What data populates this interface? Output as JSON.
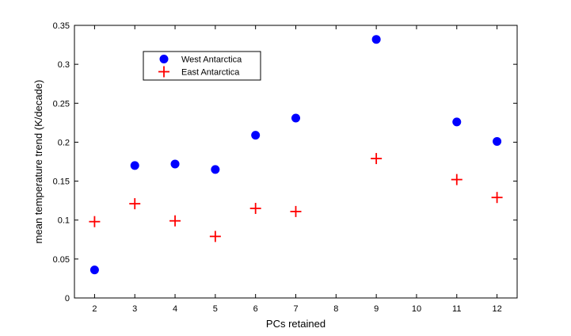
{
  "chart_data": {
    "type": "scatter",
    "xlabel": "PCs retained",
    "ylabel": "mean temperature trend (K/decade)",
    "xlim": [
      1.5,
      12.5
    ],
    "ylim": [
      0,
      0.35
    ],
    "xticks": [
      "2",
      "3",
      "4",
      "5",
      "6",
      "7",
      "8",
      "9",
      "10",
      "11",
      "12"
    ],
    "yticks": [
      "0",
      "0.05",
      "0.1",
      "0.15",
      "0.2",
      "0.25",
      "0.3",
      "0.35"
    ],
    "grid": false,
    "legend_position": "top-left",
    "series": [
      {
        "name": "West Antarctica",
        "marker": "circle",
        "color": "#0000ff",
        "points": [
          {
            "x": 2,
            "y": 0.036
          },
          {
            "x": 3,
            "y": 0.17
          },
          {
            "x": 4,
            "y": 0.172
          },
          {
            "x": 5,
            "y": 0.165
          },
          {
            "x": 6,
            "y": 0.209
          },
          {
            "x": 7,
            "y": 0.231
          },
          {
            "x": 9,
            "y": 0.332
          },
          {
            "x": 11,
            "y": 0.226
          },
          {
            "x": 12,
            "y": 0.201
          }
        ]
      },
      {
        "name": "East Antarctica",
        "marker": "plus",
        "color": "#ff0000",
        "points": [
          {
            "x": 2,
            "y": 0.098
          },
          {
            "x": 3,
            "y": 0.121
          },
          {
            "x": 4,
            "y": 0.099
          },
          {
            "x": 5,
            "y": 0.079
          },
          {
            "x": 6,
            "y": 0.115
          },
          {
            "x": 7,
            "y": 0.111
          },
          {
            "x": 9,
            "y": 0.179
          },
          {
            "x": 11,
            "y": 0.152
          },
          {
            "x": 12,
            "y": 0.129
          }
        ]
      }
    ]
  }
}
